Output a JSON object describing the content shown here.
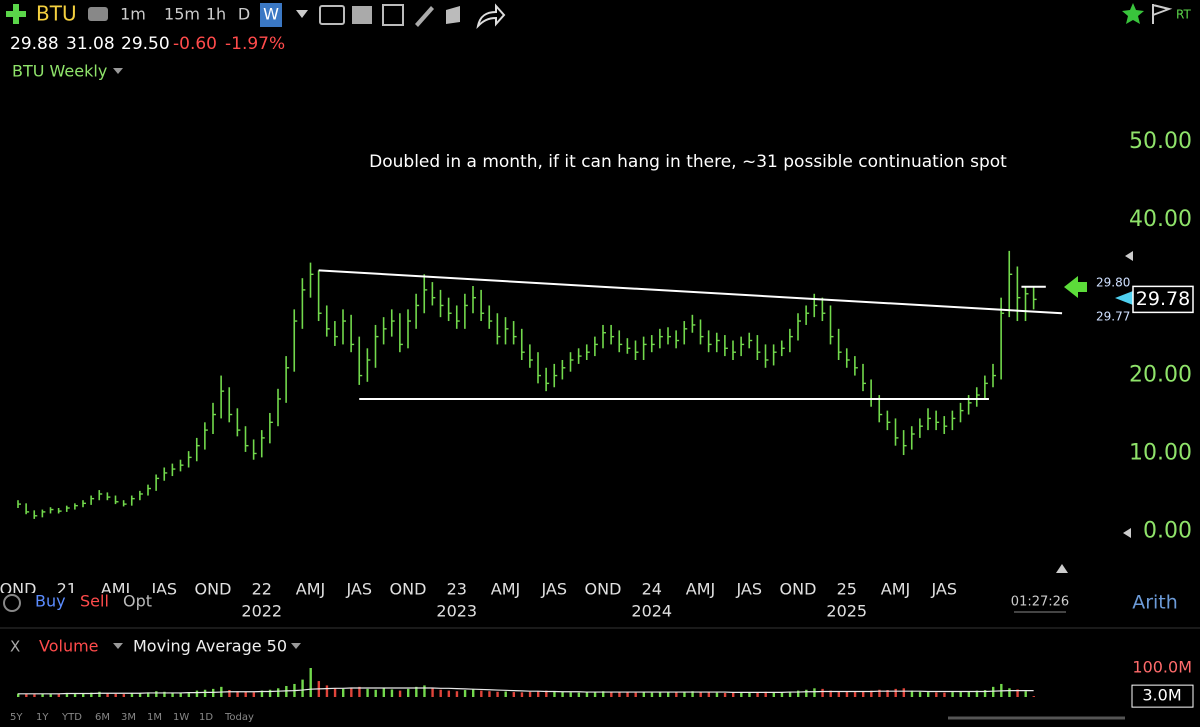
{
  "toolbar": {
    "symbol": "BTU",
    "intervals": [
      "1m",
      "15m",
      "1h",
      "D",
      "W"
    ],
    "active_interval": 4
  },
  "quote": {
    "prices": [
      "29.88",
      "31.08",
      "29.50"
    ],
    "change": [
      "-0.60",
      "-1.97%"
    ]
  },
  "chart_header": "BTU Weekly",
  "annotation": "Doubled in a month, if it can hang in there, ~31 possible continuation spot",
  "line_labels": [
    "29.80",
    "29.77"
  ],
  "order_buttons": [
    "Buy",
    "Sell",
    "Opt"
  ],
  "clock": "01:27:26",
  "scale_mode": "Arith",
  "volume_header": "X",
  "ranges": [
    "5Y",
    "1Y",
    "YTD",
    "6M",
    "3M",
    "1M",
    "1W",
    "1D",
    "Today"
  ],
  "chart_data": [
    {
      "type": "ohlc",
      "color": "#72d94c",
      "axis_color": "#8fe36a",
      "ylim": [
        -5.6,
        57.3
      ],
      "yticks": [
        {
          "value": 0,
          "label": "0.00"
        },
        {
          "value": 10,
          "label": "10.00"
        },
        {
          "value": 20,
          "label": "20.00"
        },
        {
          "value": 40,
          "label": "40.00"
        },
        {
          "value": 50,
          "label": "50.00"
        }
      ],
      "last_price": {
        "value": 29.78,
        "label": "29.78"
      },
      "categories": [
        "OND",
        null,
        null,
        null,
        null,
        null,
        "21",
        null,
        null,
        null,
        null,
        null,
        "AMJ",
        null,
        null,
        null,
        null,
        null,
        "JAS",
        null,
        null,
        null,
        null,
        null,
        "OND",
        null,
        null,
        null,
        null,
        null,
        "22",
        null,
        null,
        null,
        null,
        null,
        "AMJ",
        null,
        null,
        null,
        null,
        null,
        "JAS",
        null,
        null,
        null,
        null,
        null,
        "OND",
        null,
        null,
        null,
        null,
        null,
        "23",
        null,
        null,
        null,
        null,
        null,
        "AMJ",
        null,
        null,
        null,
        null,
        null,
        "JAS",
        null,
        null,
        null,
        null,
        null,
        "OND",
        null,
        null,
        null,
        null,
        null,
        "24",
        null,
        null,
        null,
        null,
        null,
        "AMJ",
        null,
        null,
        null,
        null,
        null,
        "JAS",
        null,
        null,
        null,
        null,
        null,
        "OND",
        null,
        null,
        null,
        null,
        null,
        "25",
        null,
        null,
        null,
        null,
        null,
        "AMJ",
        null,
        null,
        null,
        null,
        null,
        "JAS",
        null,
        null,
        null,
        null,
        null,
        null,
        null,
        null,
        null,
        null,
        null
      ],
      "year_labels": [
        null,
        null,
        null,
        null,
        null,
        null,
        null,
        null,
        null,
        null,
        null,
        null,
        null,
        null,
        null,
        null,
        null,
        null,
        null,
        null,
        null,
        null,
        null,
        null,
        null,
        null,
        null,
        null,
        null,
        null,
        "2022",
        null,
        null,
        null,
        null,
        null,
        null,
        null,
        null,
        null,
        null,
        null,
        null,
        null,
        null,
        null,
        null,
        null,
        null,
        null,
        null,
        null,
        null,
        null,
        "2023",
        null,
        null,
        null,
        null,
        null,
        null,
        null,
        null,
        null,
        null,
        null,
        null,
        null,
        null,
        null,
        null,
        null,
        null,
        null,
        null,
        null,
        null,
        null,
        "2024",
        null,
        null,
        null,
        null,
        null,
        null,
        null,
        null,
        null,
        null,
        null,
        null,
        null,
        null,
        null,
        null,
        null,
        null,
        null,
        null,
        null,
        null,
        null,
        "2025",
        null,
        null,
        null,
        null,
        null,
        null,
        null,
        null,
        null,
        null,
        null,
        null,
        null,
        null,
        null,
        null,
        null,
        null,
        null,
        null,
        null,
        null,
        null
      ],
      "high": [
        4.0,
        3.6,
        2.7,
        2.8,
        3.1,
        3.0,
        3.3,
        3.6,
        4.0,
        4.6,
        5.3,
        5.0,
        4.6,
        4.0,
        4.6,
        5.2,
        6.0,
        7.3,
        8.2,
        8.7,
        9.2,
        10.3,
        12.0,
        14.0,
        16.5,
        20.0,
        18.5,
        15.8,
        13.5,
        11.8,
        13.0,
        15.2,
        18.3,
        22.5,
        28.5,
        32.5,
        34.5,
        33.5,
        29.0,
        27.0,
        28.5,
        27.8,
        25.0,
        23.5,
        26.5,
        27.5,
        28.5,
        28.0,
        28.5,
        30.5,
        33.0,
        32.0,
        31.0,
        30.0,
        29.0,
        30.5,
        31.5,
        31.0,
        29.0,
        28.0,
        27.5,
        27.0,
        26.0,
        24.0,
        23.0,
        21.0,
        21.5,
        22.0,
        23.0,
        23.5,
        24.0,
        25.0,
        26.5,
        26.5,
        25.8,
        24.8,
        24.5,
        25.0,
        25.2,
        26.0,
        26.2,
        25.8,
        27.0,
        27.8,
        27.2,
        25.8,
        25.5,
        25.2,
        24.5,
        25.0,
        25.5,
        25.2,
        24.0,
        24.0,
        24.5,
        26.0,
        28.0,
        29.0,
        30.5,
        30.0,
        29.0,
        26.0,
        23.5,
        22.5,
        21.5,
        19.5,
        17.5,
        15.5,
        14.5,
        13.0,
        13.5,
        14.5,
        15.8,
        15.5,
        14.8,
        15.5,
        16.5,
        17.5,
        18.5,
        20.0,
        21.5,
        30.0,
        36.0,
        34.0,
        31.5,
        31.5
      ],
      "low": [
        3.0,
        2.2,
        1.6,
        1.8,
        2.3,
        2.3,
        2.5,
        2.8,
        3.1,
        3.4,
        4.0,
        4.0,
        3.5,
        3.2,
        3.3,
        4.0,
        4.6,
        5.2,
        6.5,
        7.1,
        7.7,
        8.2,
        9.0,
        10.5,
        12.5,
        14.5,
        14.0,
        12.2,
        10.2,
        9.2,
        9.5,
        11.3,
        13.5,
        16.5,
        20.5,
        26.0,
        30.0,
        27.0,
        25.0,
        23.8,
        24.0,
        23.0,
        18.8,
        19.2,
        21.0,
        24.0,
        25.0,
        23.0,
        23.5,
        26.0,
        28.0,
        29.0,
        27.5,
        27.0,
        26.0,
        26.0,
        28.0,
        27.0,
        26.0,
        24.0,
        24.0,
        24.0,
        22.0,
        21.0,
        19.0,
        18.0,
        18.5,
        19.5,
        20.5,
        21.5,
        22.0,
        22.5,
        23.5,
        24.0,
        23.0,
        22.8,
        22.0,
        22.0,
        23.0,
        23.5,
        24.0,
        23.5,
        24.0,
        25.5,
        24.0,
        23.0,
        23.0,
        22.5,
        22.0,
        22.5,
        23.5,
        22.0,
        21.0,
        21.3,
        22.5,
        23.0,
        24.5,
        26.5,
        27.5,
        27.0,
        24.0,
        22.0,
        21.0,
        20.0,
        18.0,
        16.0,
        14.0,
        13.0,
        11.0,
        9.8,
        10.5,
        12.0,
        13.0,
        13.0,
        12.5,
        13.0,
        14.0,
        15.0,
        16.0,
        17.0,
        18.5,
        19.5,
        27.5,
        27.0,
        27.0,
        28.5
      ],
      "close": [
        3.5,
        2.5,
        2.0,
        2.5,
        2.8,
        2.6,
        3.0,
        3.3,
        3.6,
        4.2,
        4.8,
        4.4,
        3.8,
        3.5,
        4.2,
        4.8,
        5.5,
        6.8,
        7.5,
        8.0,
        8.5,
        9.5,
        11,
        13,
        15,
        18,
        15,
        13,
        11,
        10,
        12,
        14,
        17,
        21,
        27,
        31,
        33,
        28,
        26,
        25,
        27,
        24,
        20,
        22,
        25,
        26,
        27,
        24,
        27,
        29,
        31,
        30,
        29,
        28,
        27,
        29,
        30,
        28,
        27,
        25,
        26,
        25,
        23,
        22,
        20,
        19,
        20,
        21,
        22,
        22.5,
        23,
        24,
        25.5,
        25,
        24,
        23.5,
        23,
        24,
        24,
        25,
        25,
        24.5,
        26,
        26.5,
        25,
        24,
        24.5,
        23.5,
        23,
        24,
        24.5,
        23,
        22,
        23,
        23.5,
        25,
        27,
        28,
        29,
        28,
        25,
        23,
        22,
        21,
        19,
        17,
        15,
        14,
        12,
        11,
        12.5,
        13.5,
        14.5,
        14,
        13.5,
        14.5,
        15.5,
        16.5,
        17.5,
        19,
        20,
        28,
        33,
        30,
        30.5,
        29.78
      ],
      "trendlines": [
        {
          "x": [
            37,
            128.5
          ],
          "y": [
            33.5,
            28.0
          ]
        },
        {
          "x": [
            42,
            119.5
          ],
          "y": [
            17,
            17
          ]
        },
        {
          "x": [
            123.5,
            126.5
          ],
          "y": [
            31.4,
            31.4
          ]
        }
      ]
    },
    {
      "type": "bar",
      "ylim": [
        0,
        100
      ],
      "yticks": [
        {
          "value": 100,
          "label": "100.0M"
        }
      ],
      "last_value": {
        "value": 3,
        "label": "3.0M"
      },
      "series": [
        {
          "name": "Volume",
          "color": "#72d94c",
          "down_color": "#e0443a",
          "values": [
            12,
            10,
            9,
            11,
            10,
            12,
            14,
            12,
            11,
            15,
            18,
            13,
            11,
            10,
            12,
            14,
            16,
            20,
            18,
            15,
            14,
            17,
            22,
            25,
            28,
            35,
            24,
            20,
            18,
            16,
            22,
            25,
            30,
            38,
            45,
            60,
            100,
            55,
            40,
            30,
            28,
            32,
            35,
            28,
            25,
            30,
            26,
            22,
            28,
            35,
            40,
            30,
            25,
            22,
            20,
            24,
            26,
            22,
            20,
            18,
            19,
            17,
            16,
            18,
            20,
            22,
            18,
            17,
            16,
            15,
            17,
            18,
            20,
            19,
            17,
            16,
            15,
            16,
            15,
            16,
            18,
            17,
            19,
            20,
            17,
            16,
            15,
            14,
            15,
            16,
            15,
            17,
            18,
            16,
            15,
            18,
            22,
            25,
            30,
            28,
            22,
            20,
            18,
            17,
            19,
            22,
            25,
            24,
            28,
            30,
            22,
            18,
            17,
            16,
            15,
            17,
            18,
            20,
            22,
            24,
            35,
            45,
            30,
            26,
            20,
            3
          ]
        },
        {
          "name": "Moving Average 50",
          "color": "#e8e8e8",
          "values": [
            11,
            11,
            11,
            11,
            11,
            11,
            12,
            12,
            12,
            12,
            13,
            13,
            13,
            13,
            13,
            13,
            14,
            14,
            14,
            14,
            14,
            15,
            15,
            16,
            16,
            17,
            18,
            18,
            18,
            18,
            19,
            19,
            20,
            21,
            22,
            24,
            27,
            28,
            29,
            30,
            30,
            31,
            31,
            31,
            31,
            31,
            31,
            31,
            31,
            31,
            31,
            31,
            30,
            30,
            29,
            28,
            27,
            26,
            25,
            24,
            23,
            22,
            21,
            20,
            20,
            19,
            19,
            18,
            18,
            18,
            17,
            17,
            17,
            17,
            17,
            17,
            17,
            17,
            17,
            17,
            17,
            17,
            17,
            17,
            17,
            17,
            17,
            17,
            16,
            16,
            16,
            16,
            16,
            16,
            16,
            17,
            17,
            18,
            18,
            19,
            19,
            19,
            19,
            19,
            19,
            19,
            20,
            20,
            20,
            20,
            20,
            20,
            19,
            19,
            19,
            19,
            19,
            19,
            19,
            19,
            20,
            21,
            22,
            22,
            22,
            22
          ]
        }
      ]
    }
  ]
}
